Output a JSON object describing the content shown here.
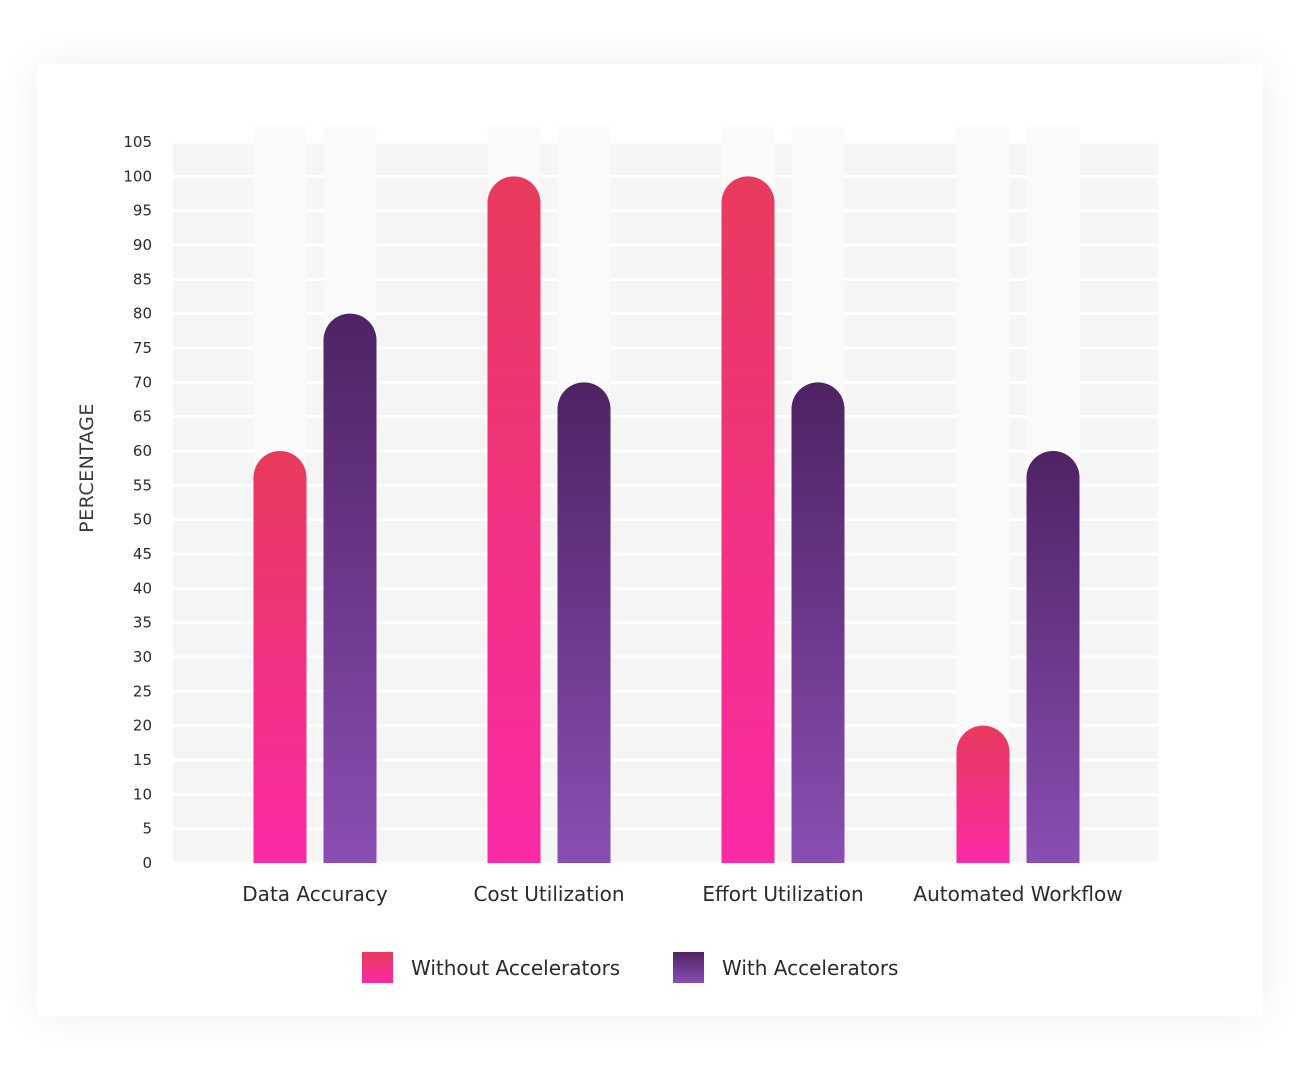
{
  "chart_data": {
    "type": "bar",
    "ylabel": "PERCENTAGE",
    "xlabel": "",
    "ylim": [
      0,
      105
    ],
    "yticks": [
      0,
      5,
      10,
      15,
      20,
      25,
      30,
      35,
      40,
      45,
      50,
      55,
      60,
      65,
      70,
      75,
      80,
      85,
      90,
      95,
      100,
      105
    ],
    "categories": [
      "Data Accuracy",
      "Cost Utilization",
      "Effort Utilization",
      "Automated Workflow"
    ],
    "series": [
      {
        "name": "Without Accelerators",
        "values": [
          60,
          100,
          100,
          20
        ],
        "color_top": "#e83a5c",
        "color_bottom": "#fb2aa6"
      },
      {
        "name": "With Accelerators",
        "values": [
          80,
          70,
          70,
          60
        ],
        "color_top": "#4e2363",
        "color_bottom": "#8b4db3"
      }
    ],
    "grid": true,
    "legend_position": "bottom"
  }
}
